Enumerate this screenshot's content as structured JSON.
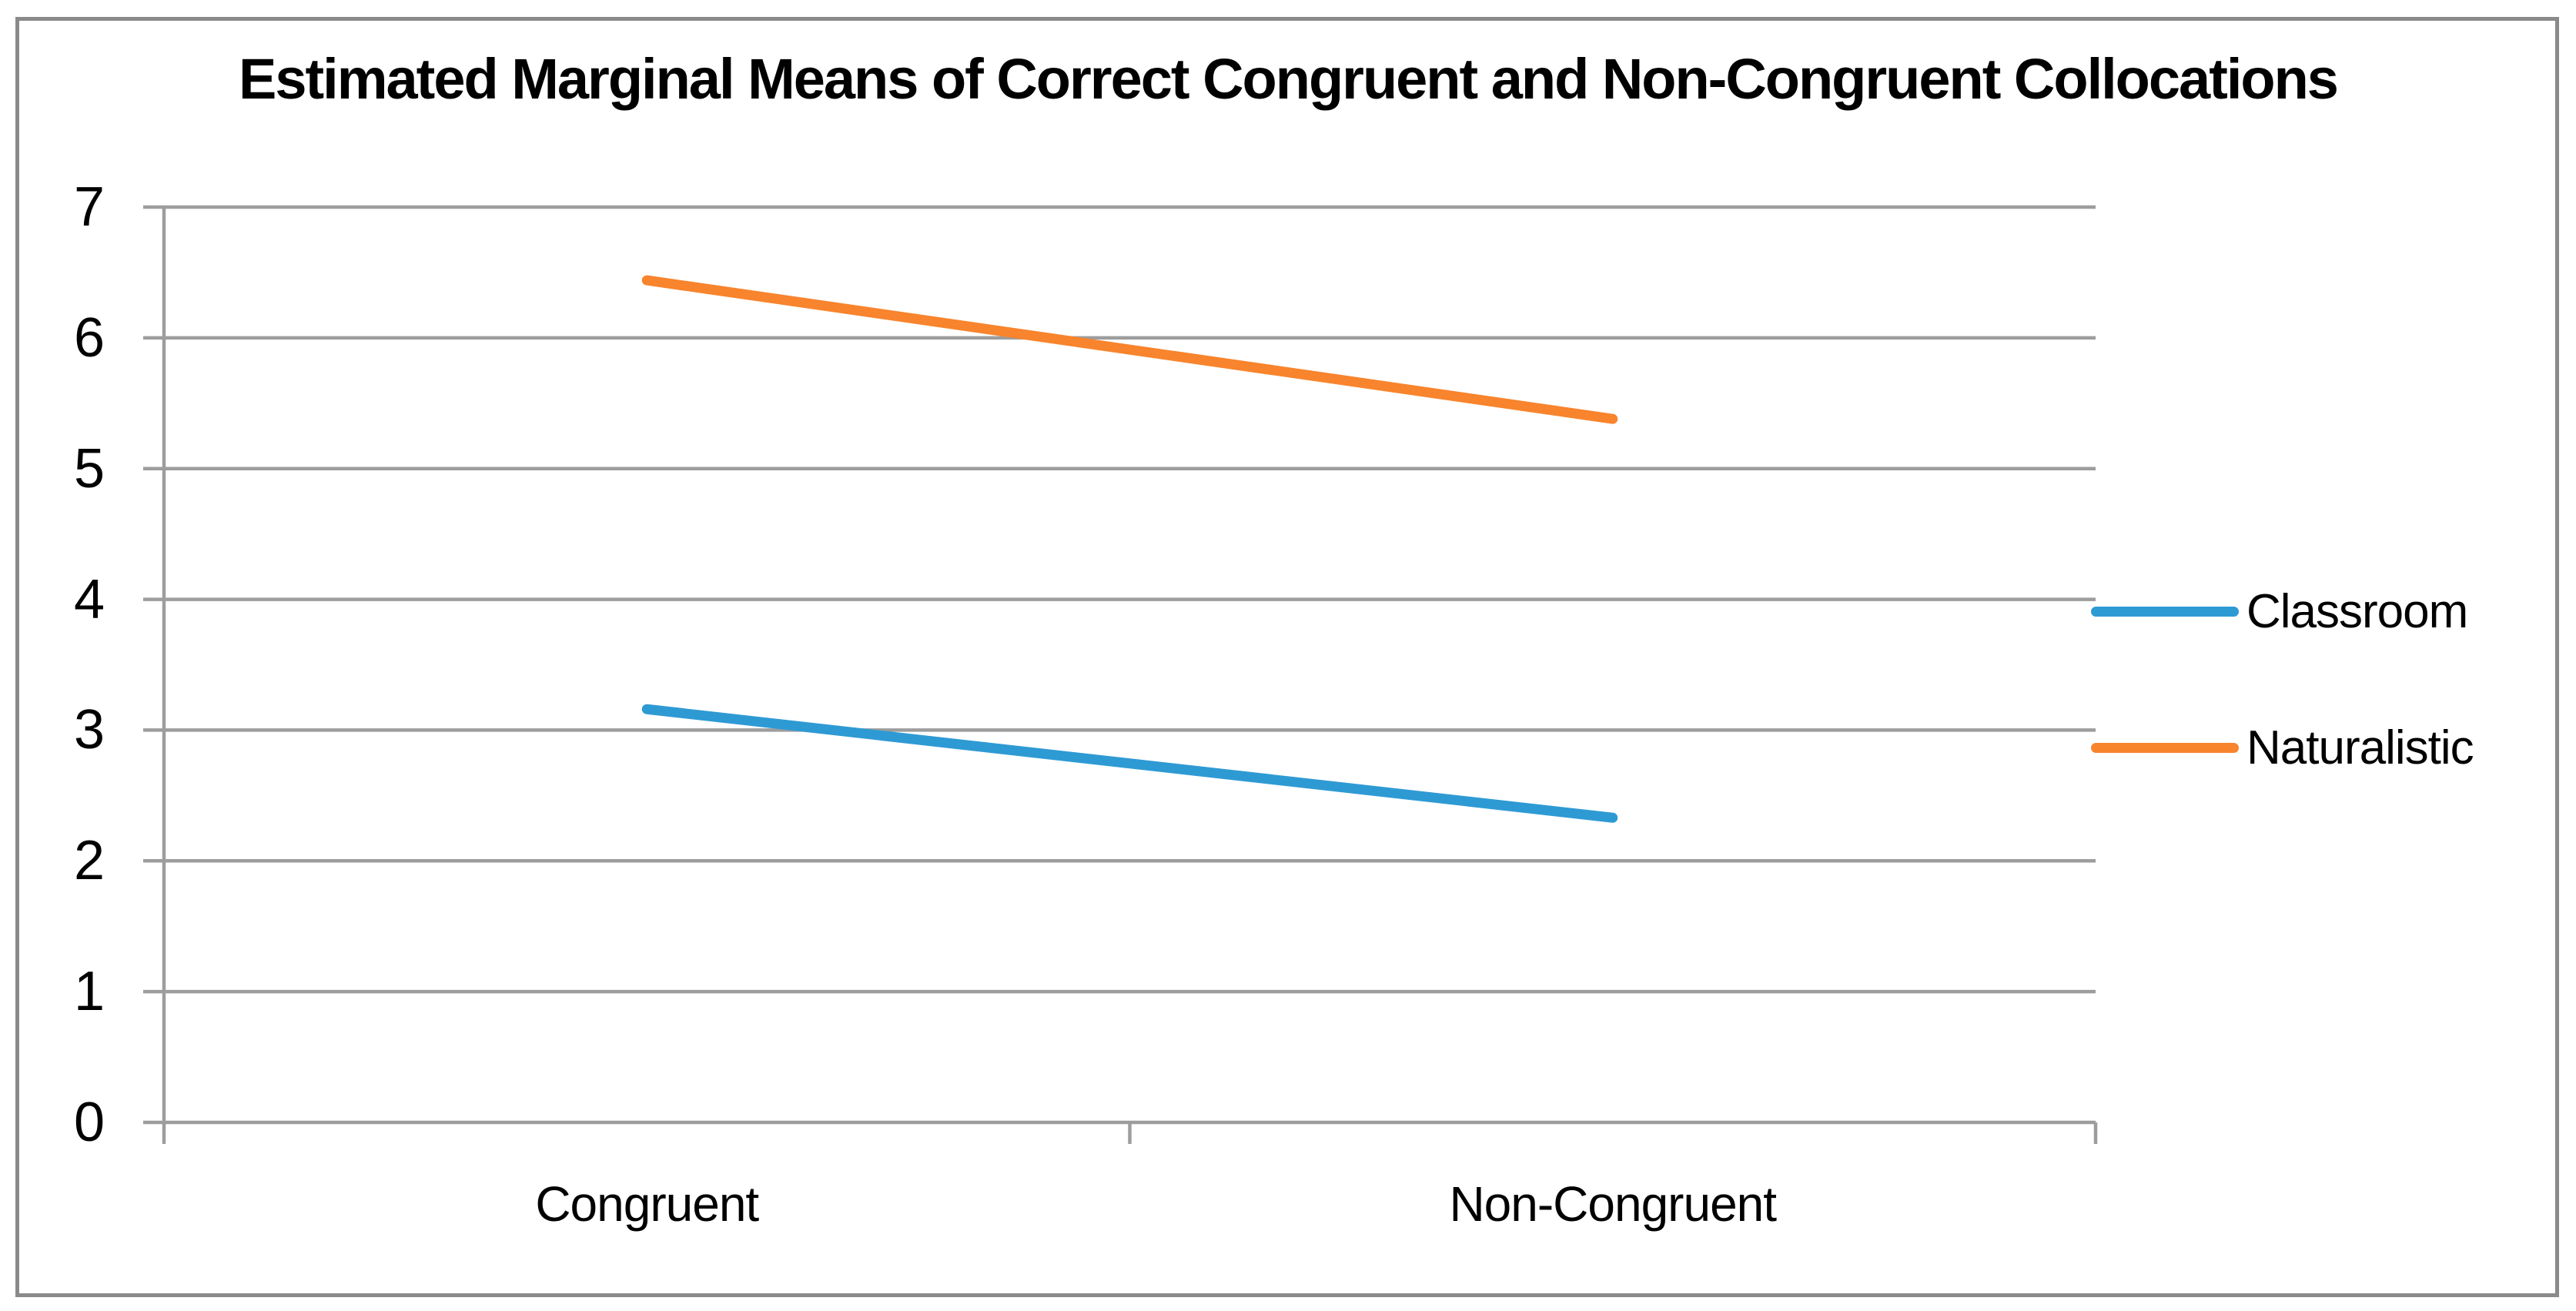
{
  "title": "Estimated Marginal Means of Correct Congruent and Non-Congruent Collocations",
  "chart_data": {
    "type": "line",
    "title": "Estimated Marginal Means of Correct Congruent and Non-Congruent Collocations",
    "categories": [
      "Congruent",
      "Non-Congruent"
    ],
    "series": [
      {
        "name": "Classroom",
        "color": "#2E9AD4",
        "values": [
          3.16,
          2.33
        ]
      },
      {
        "name": "Naturalistic",
        "color": "#F8842D",
        "values": [
          6.44,
          5.38
        ]
      }
    ],
    "xlabel": "",
    "ylabel": "",
    "ylim": [
      0,
      7
    ],
    "yticks": [
      "7",
      "6",
      "5",
      "4",
      "3",
      "2",
      "1",
      "0"
    ],
    "grid": "horizontal-major",
    "legend_position": "right"
  },
  "colors": {
    "gridline": "#9D9D9D",
    "axis": "#9D9D9D",
    "frame_border": "#8A8A8A",
    "background": "#FFFFFF",
    "text": "#000000"
  }
}
